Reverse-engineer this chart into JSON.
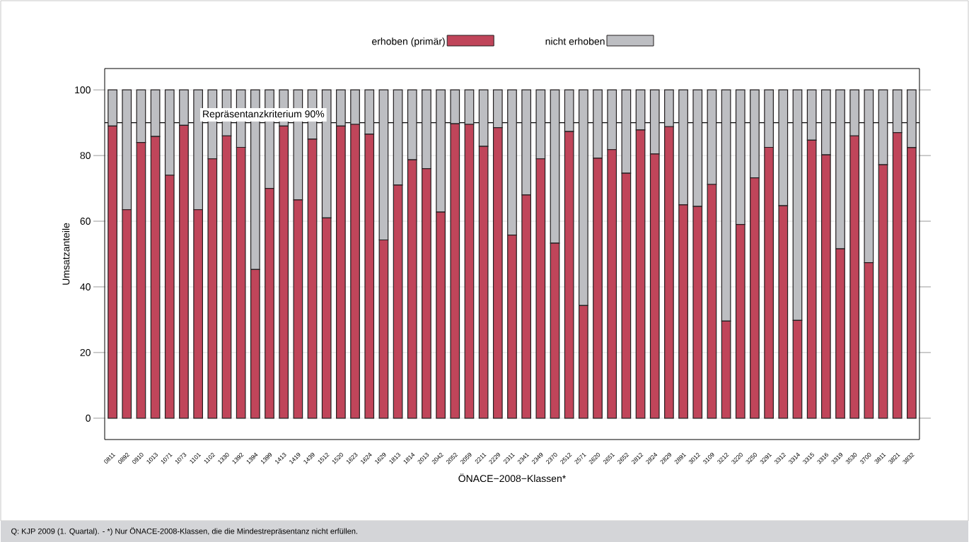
{
  "chart_data": {
    "type": "bar",
    "stacked": true,
    "xlabel": "ÖNACE−2008−Klassen*",
    "ylabel": "Umsatzanteile",
    "categories": [
      "0811",
      "0892",
      "0910",
      "1013",
      "1071",
      "1073",
      "1101",
      "1102",
      "1330",
      "1392",
      "1394",
      "1399",
      "1413",
      "1419",
      "1439",
      "1512",
      "1520",
      "1623",
      "1624",
      "1629",
      "1813",
      "1814",
      "2013",
      "2042",
      "2052",
      "2059",
      "2211",
      "2229",
      "2311",
      "2341",
      "2349",
      "2370",
      "2512",
      "2571",
      "2620",
      "2651",
      "2652",
      "2812",
      "2824",
      "2829",
      "2891",
      "3012",
      "3109",
      "3212",
      "3220",
      "3250",
      "3291",
      "3312",
      "3314",
      "3315",
      "3316",
      "3319",
      "3530",
      "3700",
      "3811",
      "3821",
      "3832"
    ],
    "series": [
      {
        "name": "erhoben (primär)",
        "color": "#c0455a",
        "values": [
          89,
          63.5,
          84,
          85.8,
          74,
          89.2,
          63.5,
          79,
          86,
          82.5,
          45.3,
          70,
          89,
          66.5,
          85,
          61,
          89,
          89.5,
          86.5,
          54.3,
          71,
          78.7,
          76,
          62.8,
          89.7,
          89.5,
          82.8,
          88.5,
          55.8,
          68,
          79,
          53.3,
          87.3,
          34.3,
          79.2,
          81.8,
          74.6,
          87.8,
          80.5,
          88.8,
          65,
          64.5,
          71.2,
          29.6,
          59,
          73.2,
          82.5,
          64.7,
          29.8,
          84.7,
          80.2,
          51.6,
          86,
          47.4,
          77.2,
          87,
          82.4
        ]
      },
      {
        "name": "nicht erhoben",
        "color": "#bdbec2",
        "values": [
          11,
          36.5,
          16,
          14.2,
          26,
          10.8,
          36.5,
          21,
          14,
          17.5,
          54.7,
          30,
          11,
          33.5,
          15,
          39,
          11,
          10.5,
          13.5,
          45.7,
          29,
          21.3,
          24,
          37.2,
          10.3,
          10.5,
          17.2,
          11.5,
          44.2,
          32,
          21,
          46.7,
          12.7,
          65.7,
          20.8,
          18.2,
          25.4,
          12.2,
          19.5,
          11.2,
          35,
          35.5,
          28.8,
          70.4,
          41,
          26.8,
          17.5,
          35.3,
          70.2,
          15.3,
          19.8,
          48.4,
          14,
          52.6,
          22.8,
          13,
          17.6
        ]
      }
    ],
    "ylim": [
      -6.5,
      106.5
    ],
    "yticks": [
      0,
      20,
      40,
      60,
      80,
      100
    ],
    "grid": "y",
    "legend": "top",
    "ref_lines": [
      {
        "axis": "y",
        "value": 90,
        "label": "Repräsentanzkriterium 90%"
      }
    ],
    "annotations": [
      "Q: KJP 2009 (1. Quartal). - *) Nur ÖNACE-2008-Klassen, die die Mindestrepräsentanz nicht erfüllen."
    ]
  }
}
